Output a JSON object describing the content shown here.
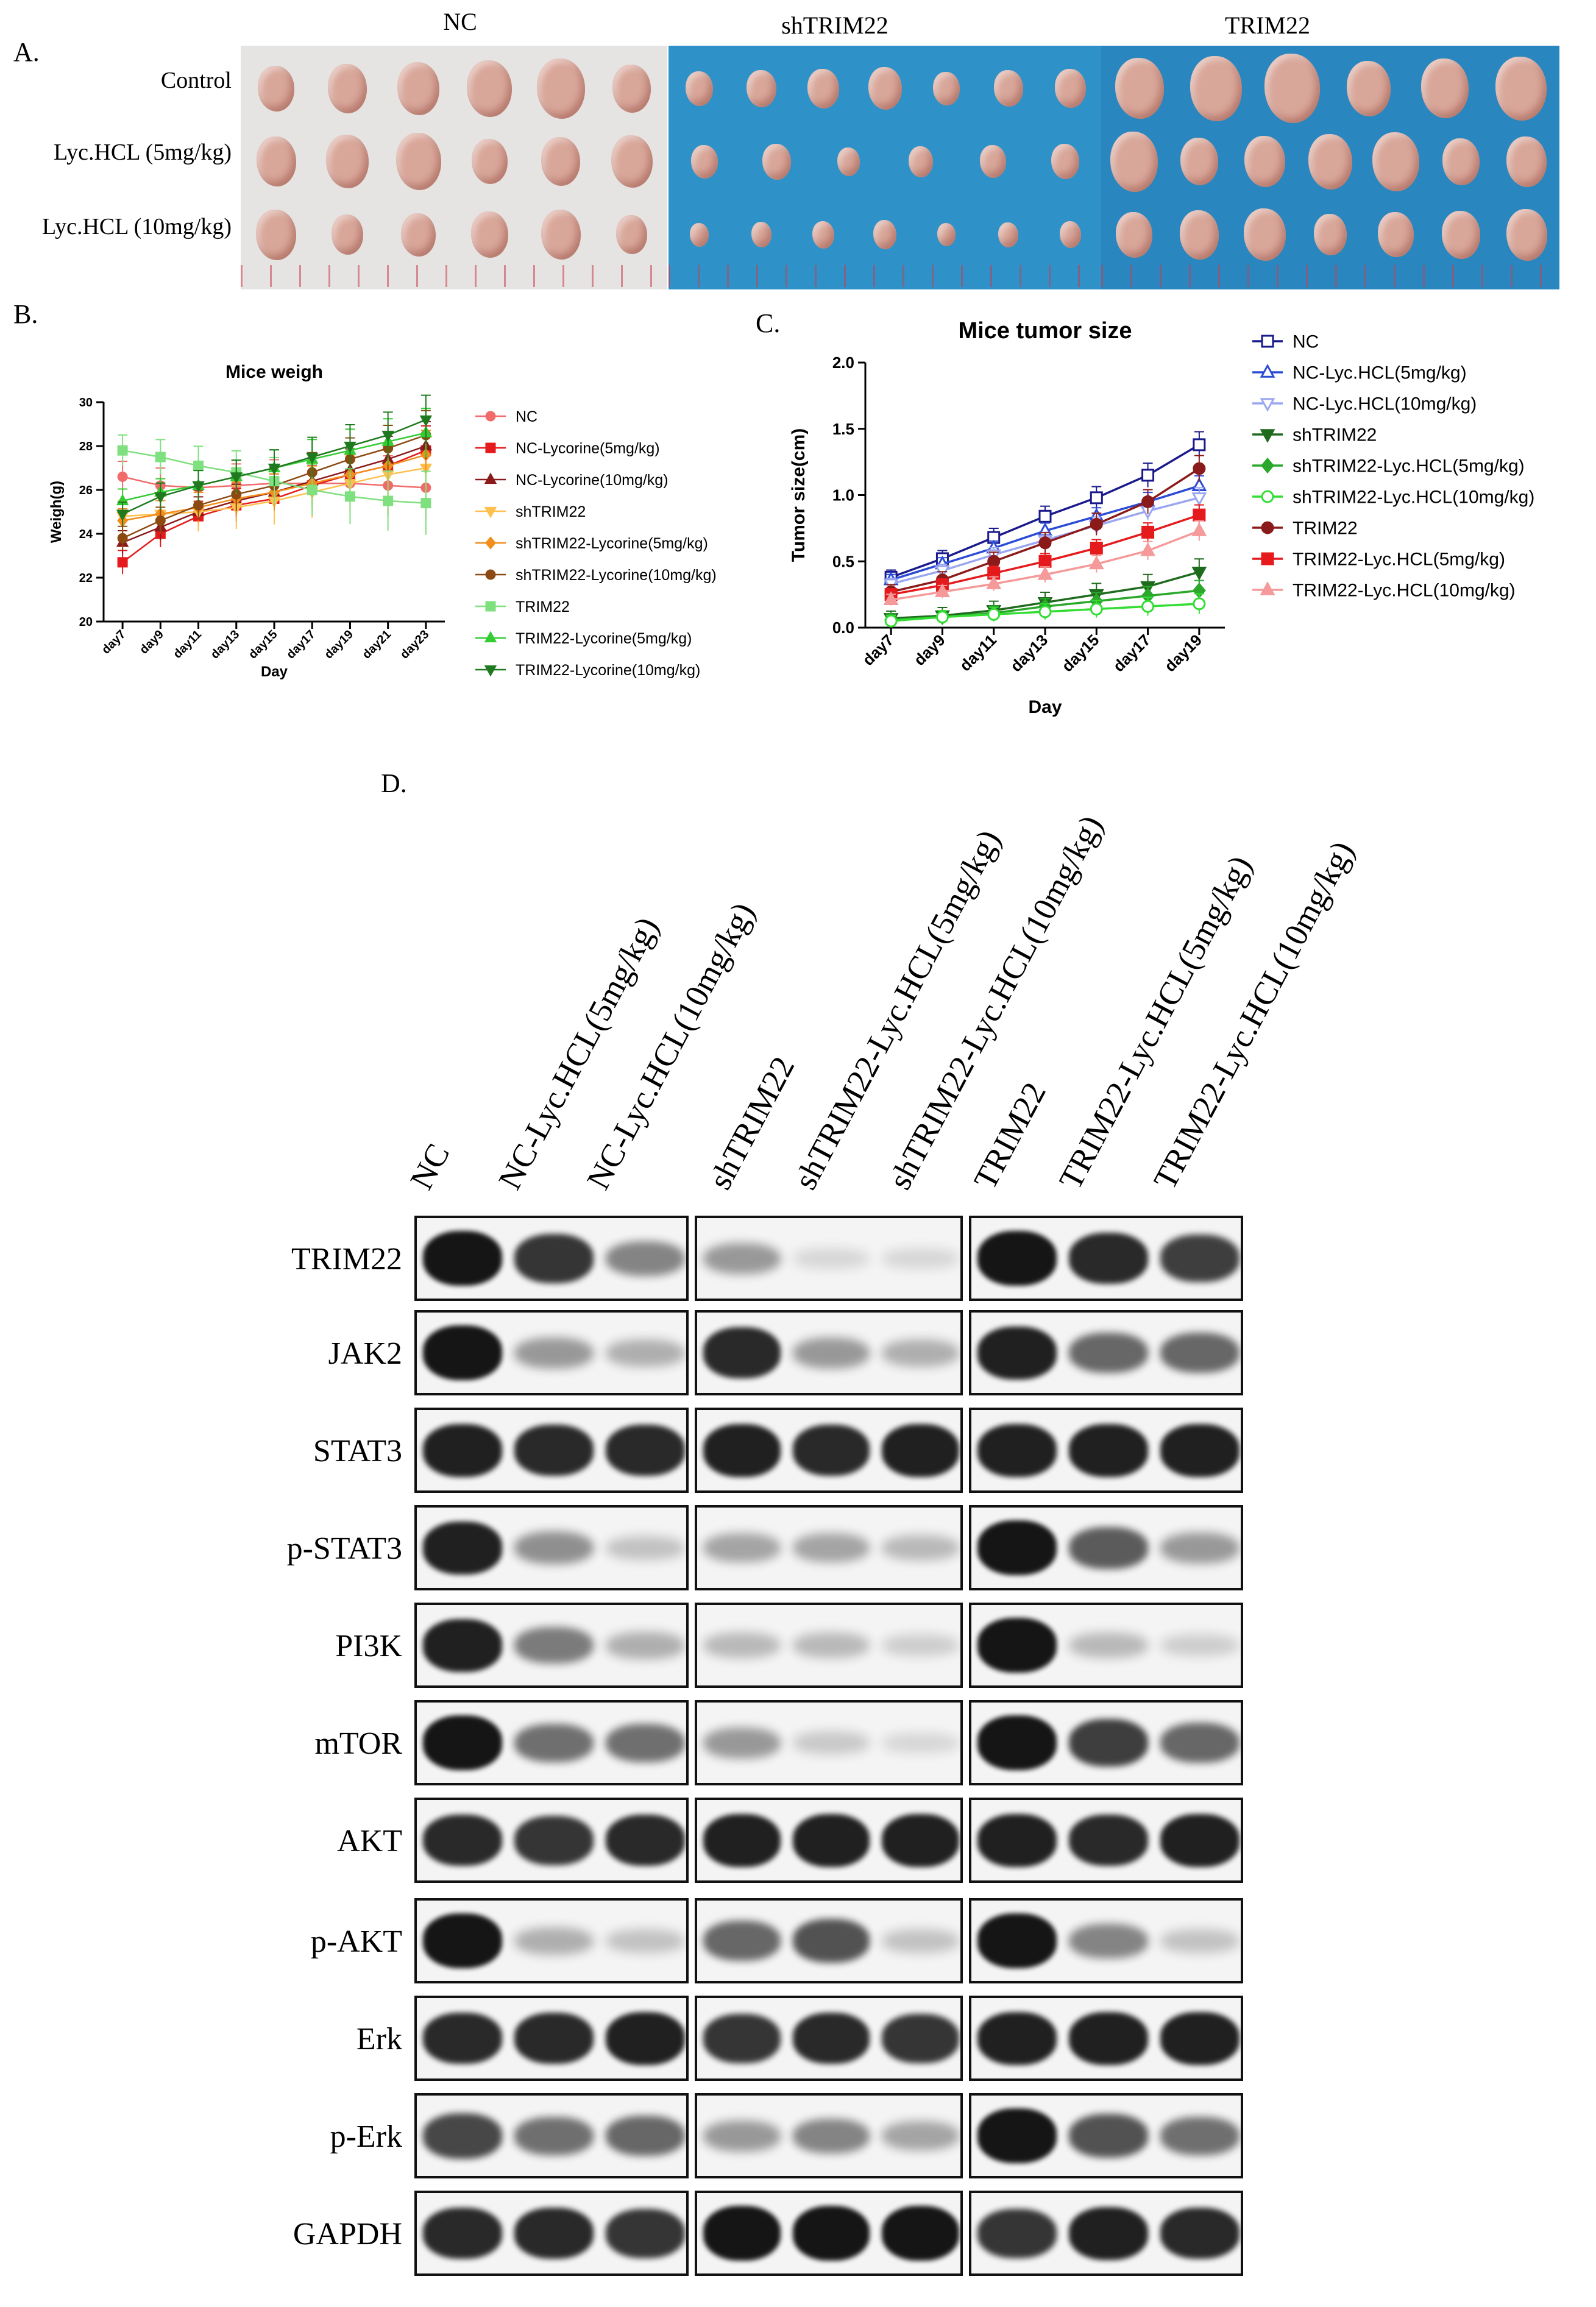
{
  "panel_a": {
    "letter": "A.",
    "columns": [
      "NC",
      "shTRIM22",
      "TRIM22"
    ],
    "rows": [
      "Control",
      "Lyc.HCL (5mg/kg)",
      "Lyc.HCL (10mg/kg)"
    ],
    "colors": {
      "nc_background": "#e8e6e4",
      "sh_background": "#2d8fc6",
      "trim_background": "#2a85bd",
      "tumor": "#d9a79a"
    }
  },
  "panel_b": {
    "letter": "B."
  },
  "panel_c": {
    "letter": "C."
  },
  "panel_d": {
    "letter": "D."
  },
  "chart_data": [
    {
      "id": "B",
      "type": "line",
      "title": "Mice weigh",
      "xlabel": "Day",
      "ylabel": "Weigh(g)",
      "categories": [
        "day7",
        "day9",
        "day11",
        "day13",
        "day15",
        "day17",
        "day19",
        "day21",
        "day23"
      ],
      "ylim": [
        20,
        30
      ],
      "yticks": [
        20,
        22,
        24,
        26,
        28,
        30
      ],
      "legend_position": "right",
      "series": [
        {
          "name": "NC",
          "color": "#f26b6b",
          "marker": "circle",
          "values": [
            26.6,
            26.2,
            26.1,
            26.2,
            26.3,
            26.3,
            26.3,
            26.2,
            26.1
          ]
        },
        {
          "name": "NC-Lycorine(5mg/kg)",
          "color": "#e41a1c",
          "marker": "square",
          "values": [
            22.7,
            24.0,
            24.8,
            25.3,
            25.6,
            26.2,
            26.7,
            27.1,
            27.8
          ]
        },
        {
          "name": "NC-Lycorine(10mg/kg)",
          "color": "#8b1a1a",
          "marker": "triangle-up",
          "values": [
            23.6,
            24.3,
            25.0,
            25.5,
            25.9,
            26.4,
            26.9,
            27.4,
            28.0
          ]
        },
        {
          "name": "shTRIM22",
          "color": "#ffc04d",
          "marker": "triangle-down",
          "values": [
            24.8,
            24.9,
            25.0,
            25.2,
            25.5,
            25.9,
            26.3,
            26.7,
            27.0
          ]
        },
        {
          "name": "shTRIM22-Lycorine(5mg/kg)",
          "color": "#f28e1c",
          "marker": "diamond",
          "values": [
            24.6,
            24.9,
            25.2,
            25.6,
            25.9,
            26.3,
            26.7,
            27.1,
            27.6
          ]
        },
        {
          "name": "shTRIM22-Lycorine(10mg/kg)",
          "color": "#8c4a12",
          "marker": "circle",
          "values": [
            23.8,
            24.6,
            25.3,
            25.8,
            26.2,
            26.8,
            27.4,
            27.9,
            28.5
          ]
        },
        {
          "name": "TRIM22",
          "color": "#7fe07f",
          "marker": "square",
          "values": [
            27.8,
            27.5,
            27.1,
            26.8,
            26.4,
            26.0,
            25.7,
            25.5,
            25.4
          ]
        },
        {
          "name": "TRIM22-Lycorine(5mg/kg)",
          "color": "#33cc33",
          "marker": "triangle-up",
          "values": [
            25.5,
            25.9,
            26.2,
            26.6,
            27.0,
            27.4,
            27.8,
            28.2,
            28.6
          ]
        },
        {
          "name": "TRIM22-Lycorine(10mg/kg)",
          "color": "#1f7a1f",
          "marker": "triangle-down",
          "values": [
            24.9,
            25.7,
            26.2,
            26.6,
            27.0,
            27.5,
            28.0,
            28.5,
            29.2
          ]
        }
      ]
    },
    {
      "id": "C",
      "type": "line",
      "title": "Mice tumor size",
      "xlabel": "Day",
      "ylabel": "Tumor size(cm)",
      "categories": [
        "day7",
        "day9",
        "day11",
        "day13",
        "day15",
        "day17",
        "day19"
      ],
      "ylim": [
        0.0,
        2.0
      ],
      "yticks": [
        0.0,
        0.5,
        1.0,
        1.5,
        2.0
      ],
      "legend_position": "right",
      "series": [
        {
          "name": "NC",
          "color": "#1a1a8c",
          "marker": "open-square",
          "values": [
            0.38,
            0.52,
            0.68,
            0.84,
            0.98,
            1.15,
            1.38
          ]
        },
        {
          "name": "NC-Lyc.HCL(5mg/kg)",
          "color": "#2b4bd6",
          "marker": "open-triangle-up",
          "values": [
            0.36,
            0.48,
            0.6,
            0.73,
            0.84,
            0.95,
            1.07
          ]
        },
        {
          "name": "NC-Lyc.HCL(10mg/kg)",
          "color": "#9aa7f0",
          "marker": "open-triangle-down",
          "values": [
            0.33,
            0.43,
            0.55,
            0.66,
            0.77,
            0.88,
            0.98
          ]
        },
        {
          "name": "shTRIM22",
          "color": "#1e6b1e",
          "marker": "triangle-down",
          "values": [
            0.07,
            0.09,
            0.13,
            0.19,
            0.25,
            0.31,
            0.42
          ]
        },
        {
          "name": "shTRIM22-Lyc.HCL(5mg/kg)",
          "color": "#2ba82b",
          "marker": "diamond",
          "values": [
            0.06,
            0.08,
            0.11,
            0.16,
            0.2,
            0.24,
            0.28
          ]
        },
        {
          "name": "shTRIM22-Lyc.HCL(10mg/kg)",
          "color": "#33dd33",
          "marker": "open-circle",
          "values": [
            0.05,
            0.08,
            0.1,
            0.12,
            0.14,
            0.16,
            0.18
          ]
        },
        {
          "name": "TRIM22",
          "color": "#8b1a1a",
          "marker": "circle",
          "values": [
            0.27,
            0.36,
            0.5,
            0.64,
            0.78,
            0.95,
            1.2
          ]
        },
        {
          "name": "TRIM22-Lyc.HCL(5mg/kg)",
          "color": "#e41a1c",
          "marker": "square",
          "values": [
            0.25,
            0.32,
            0.41,
            0.5,
            0.6,
            0.72,
            0.85
          ]
        },
        {
          "name": "TRIM22-Lyc.HCL(10mg/kg)",
          "color": "#f59a9a",
          "marker": "triangle-up",
          "values": [
            0.21,
            0.27,
            0.33,
            0.4,
            0.48,
            0.58,
            0.73
          ]
        }
      ]
    }
  ],
  "western_blot": {
    "lanes": [
      "NC",
      "NC-Lyc.HCL(5mg/kg)",
      "NC-Lyc.HCL(10mg/kg)",
      "shTRIM22",
      "shTRIM22-Lyc.HCL(5mg/kg)",
      "shTRIM22-Lyc.HCL(10mg/kg)",
      "TRIM22",
      "TRIM22-Lyc.HCL(5mg/kg)",
      "TRIM22-Lyc.HCL(10mg/kg)"
    ],
    "proteins": [
      "TRIM22",
      "JAK2",
      "STAT3",
      "p-STAT3",
      "PI3K",
      "mTOR",
      "AKT",
      "p-AKT",
      "Erk",
      "p-Erk",
      "GAPDH"
    ],
    "band_intensity": [
      [
        1.0,
        0.85,
        0.45,
        0.35,
        0.05,
        0.05,
        1.0,
        0.9,
        0.8
      ],
      [
        1.0,
        0.35,
        0.25,
        0.9,
        0.35,
        0.25,
        0.95,
        0.6,
        0.6
      ],
      [
        0.95,
        0.9,
        0.9,
        0.95,
        0.9,
        0.95,
        0.95,
        0.95,
        0.95
      ],
      [
        0.95,
        0.4,
        0.15,
        0.3,
        0.3,
        0.2,
        1.0,
        0.65,
        0.35
      ],
      [
        0.95,
        0.5,
        0.25,
        0.2,
        0.2,
        0.1,
        1.0,
        0.2,
        0.1
      ],
      [
        1.0,
        0.55,
        0.55,
        0.35,
        0.12,
        0.05,
        1.0,
        0.8,
        0.6
      ],
      [
        0.9,
        0.85,
        0.9,
        0.95,
        0.95,
        0.95,
        0.95,
        0.9,
        0.95
      ],
      [
        1.0,
        0.25,
        0.15,
        0.6,
        0.7,
        0.15,
        1.0,
        0.45,
        0.15
      ],
      [
        0.9,
        0.9,
        0.95,
        0.85,
        0.9,
        0.85,
        0.95,
        0.95,
        0.95
      ],
      [
        0.75,
        0.55,
        0.6,
        0.35,
        0.45,
        0.3,
        1.0,
        0.7,
        0.55
      ],
      [
        0.9,
        0.9,
        0.85,
        1.0,
        1.0,
        1.0,
        0.85,
        0.95,
        0.9
      ]
    ]
  }
}
